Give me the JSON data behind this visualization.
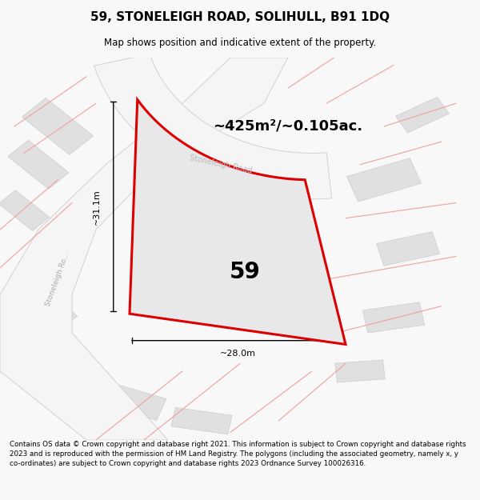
{
  "title": "59, STONELEIGH ROAD, SOLIHULL, B91 1DQ",
  "subtitle": "Map shows position and indicative extent of the property.",
  "area_label": "~425m²/~0.105ac.",
  "number_label": "59",
  "dim_horizontal": "~28.0m",
  "dim_vertical": "~31.1m",
  "road_label_diag": "Stoneleigh Ro...",
  "road_label_top": "Stoneleigh Road",
  "footer_text": "Contains OS data © Crown copyright and database right 2021. This information is subject to Crown copyright and database rights 2023 and is reproduced with the permission of HM Land Registry. The polygons (including the associated geometry, namely x, y co-ordinates) are subject to Crown copyright and database rights 2023 Ordnance Survey 100026316.",
  "bg_color": "#f8f8f8",
  "map_bg": "#eeeeee",
  "block_fill": "#e0e0e0",
  "block_edge": "#cccccc",
  "road_fill": "#f5f5f5",
  "red_color": "#dd0000",
  "pink_line": "#f0a0a0",
  "prop_fill": "#e8e8e8"
}
